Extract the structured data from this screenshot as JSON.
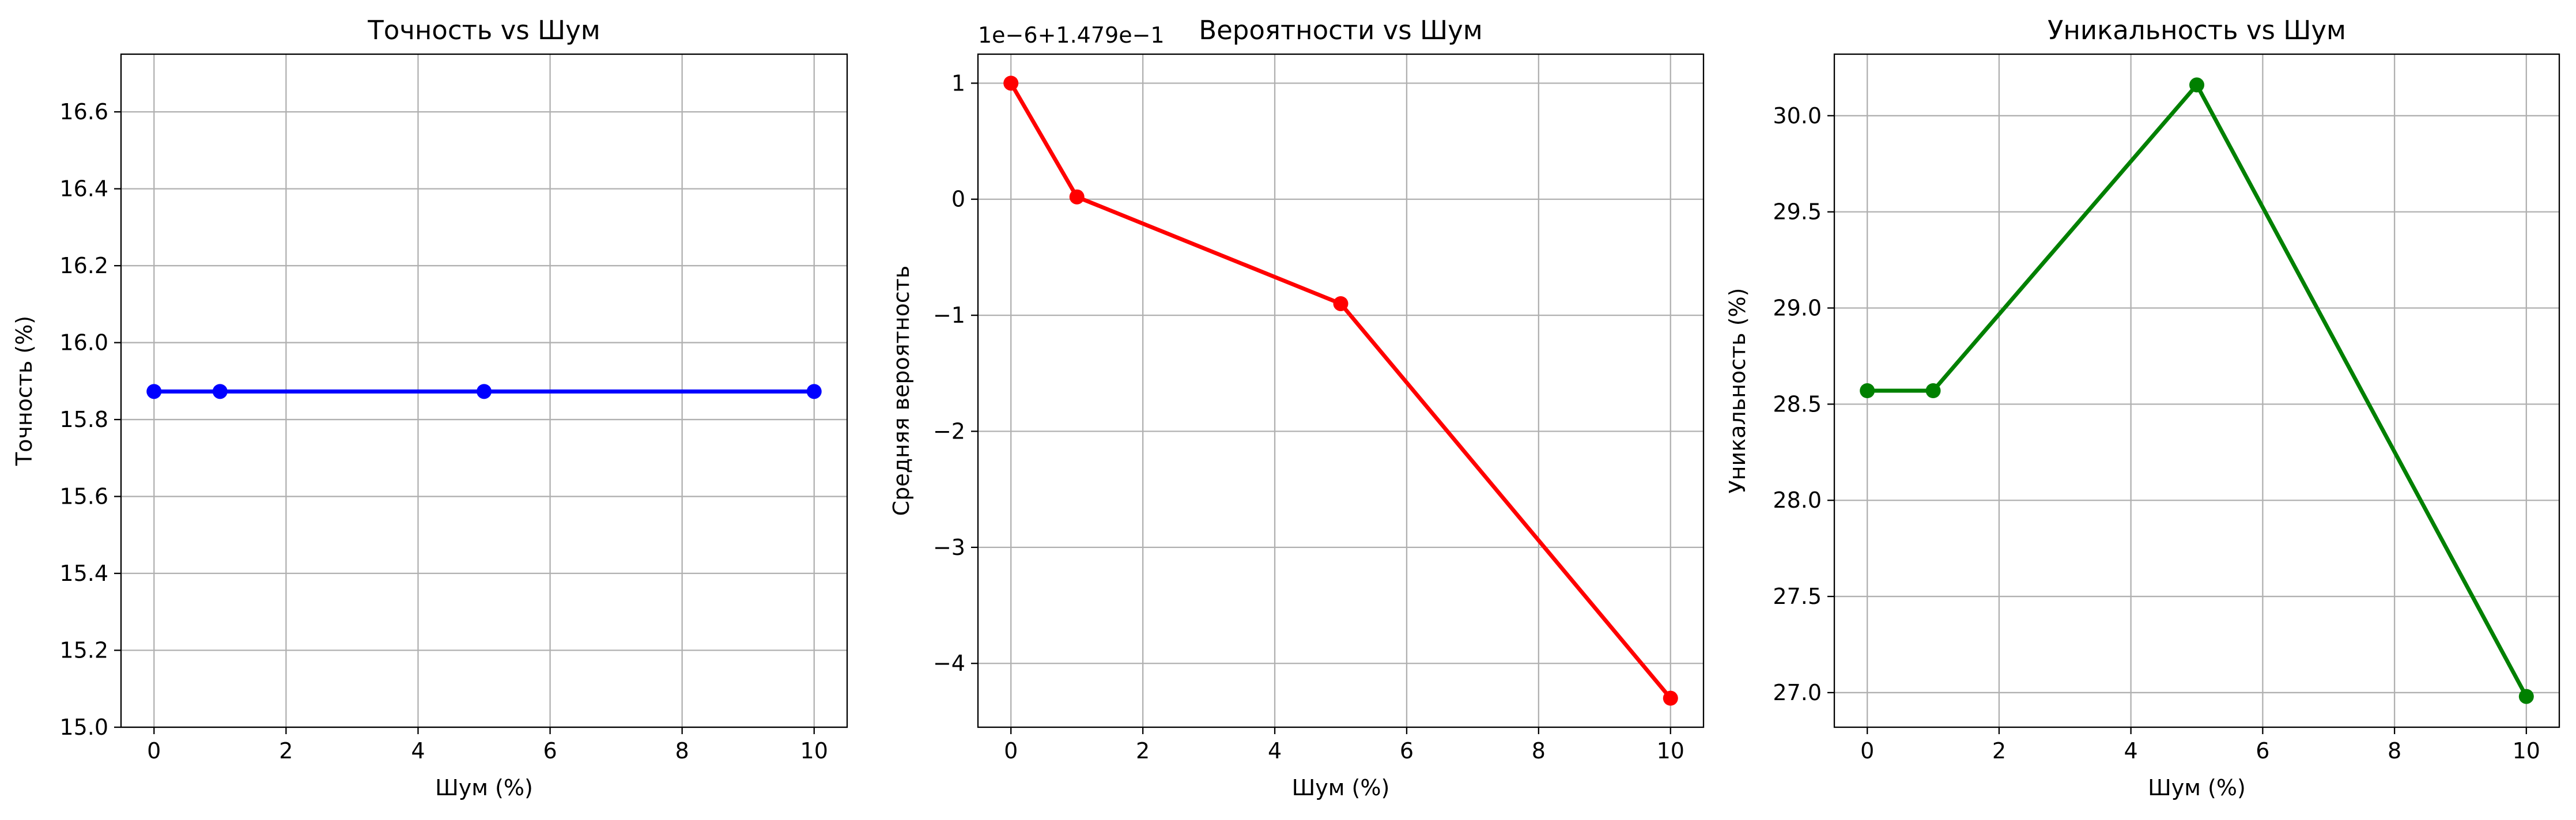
{
  "chart_data": [
    {
      "type": "line",
      "title": "Точность vs Шум",
      "xlabel": "Шум (%)",
      "ylabel": "Точность (%)",
      "x": [
        0,
        1,
        5,
        10
      ],
      "series": [
        {
          "values": [
            15.873,
            15.873,
            15.873,
            15.873
          ],
          "color": "#0000ff",
          "marker": "circle"
        }
      ],
      "xlim": [
        -0.5,
        10.5
      ],
      "ylim": [
        15.0,
        16.75
      ],
      "xticks": [
        0,
        2,
        4,
        6,
        8,
        10
      ],
      "xtick_labels": [
        "0",
        "2",
        "4",
        "6",
        "8",
        "10"
      ],
      "yticks": [
        15.0,
        15.2,
        15.4,
        15.6,
        15.8,
        16.0,
        16.2,
        16.4,
        16.6
      ],
      "ytick_labels": [
        "15.0",
        "15.2",
        "15.4",
        "15.6",
        "15.8",
        "16.0",
        "16.2",
        "16.4",
        "16.6"
      ],
      "offset_text": "",
      "grid": true
    },
    {
      "type": "line",
      "title": "Вероятности vs Шум",
      "xlabel": "Шум (%)",
      "ylabel": "Средняя вероятность",
      "x": [
        0,
        1,
        5,
        10
      ],
      "series": [
        {
          "values": [
            1.0,
            0.02,
            -0.9,
            -4.3
          ],
          "color": "#ff0000",
          "marker": "circle"
        }
      ],
      "xlim": [
        -0.5,
        10.5
      ],
      "ylim": [
        -4.55,
        1.25
      ],
      "xticks": [
        0,
        2,
        4,
        6,
        8,
        10
      ],
      "xtick_labels": [
        "0",
        "2",
        "4",
        "6",
        "8",
        "10"
      ],
      "yticks": [
        1,
        0,
        -1,
        -2,
        -3,
        -4
      ],
      "ytick_labels": [
        "1",
        "0",
        "−1",
        "−2",
        "−3",
        "−4"
      ],
      "offset_text": "1e−6+1.479e−1",
      "grid": true
    },
    {
      "type": "line",
      "title": "Уникальность vs Шум",
      "xlabel": "Шум (%)",
      "ylabel": "Уникальность (%)",
      "x": [
        0,
        1,
        5,
        10
      ],
      "series": [
        {
          "values": [
            28.57,
            28.57,
            30.16,
            26.98
          ],
          "color": "#008000",
          "marker": "circle"
        }
      ],
      "xlim": [
        -0.5,
        10.5
      ],
      "ylim": [
        26.82,
        30.32
      ],
      "xticks": [
        0,
        2,
        4,
        6,
        8,
        10
      ],
      "xtick_labels": [
        "0",
        "2",
        "4",
        "6",
        "8",
        "10"
      ],
      "yticks": [
        27.0,
        27.5,
        28.0,
        28.5,
        29.0,
        29.5,
        30.0
      ],
      "ytick_labels": [
        "27.0",
        "27.5",
        "28.0",
        "28.5",
        "29.0",
        "29.5",
        "30.0"
      ],
      "offset_text": "",
      "grid": true
    }
  ]
}
